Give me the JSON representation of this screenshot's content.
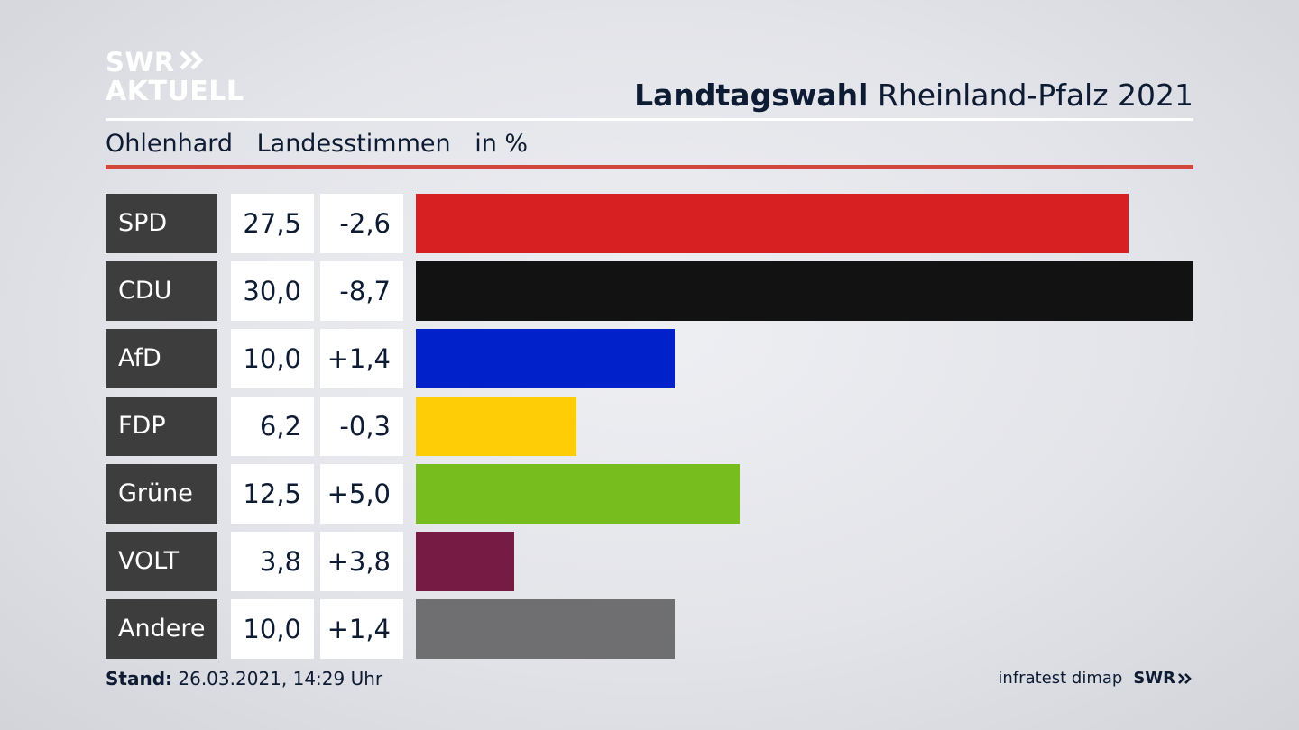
{
  "logo": {
    "line1": "SWR",
    "line2": "AKTUELL"
  },
  "header": {
    "title_bold": "Landtagswahl",
    "title_rest": "Rheinland-Pfalz 2021",
    "subtitle_place": "Ohlenhard",
    "subtitle_measure": "Landesstimmen",
    "subtitle_unit": "in %"
  },
  "chart_data": {
    "type": "bar",
    "categories": [
      "SPD",
      "CDU",
      "AfD",
      "FDP",
      "Grüne",
      "VOLT",
      "Andere"
    ],
    "values": [
      27.5,
      30.0,
      10.0,
      6.2,
      12.5,
      3.8,
      10.0
    ],
    "values_label": [
      "27,5",
      "30,0",
      "10,0",
      "6,2",
      "12,5",
      "3,8",
      "10,0"
    ],
    "diffs_label": [
      "-2,6",
      "-8,7",
      "+1,4",
      "-0,3",
      "+5,0",
      "+3,8",
      "+1,4"
    ],
    "colors": [
      "#d72021",
      "#121212",
      "#0122cb",
      "#fecd06",
      "#78bd1e",
      "#751b44",
      "#6f6f71"
    ],
    "title": "Landtagswahl Rheinland-Pfalz 2021",
    "xlim": [
      0,
      30
    ]
  },
  "footer": {
    "stand_label": "Stand:",
    "stand_value": "26.03.2021, 14:29 Uhr",
    "source": "infratest dimap",
    "brand": "SWR"
  }
}
